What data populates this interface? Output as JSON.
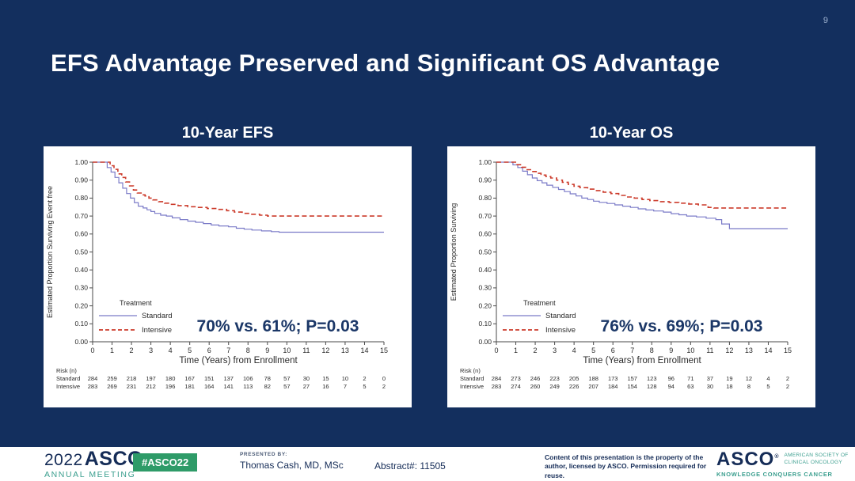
{
  "page_number": "9",
  "title": "EFS Advantage Preserved and Significant OS Advantage",
  "colors": {
    "background": "#132f5e",
    "panel": "#ffffff",
    "title_text": "#ffffff",
    "standard_line": "#7b7bc8",
    "intensive_line": "#cc3b2b",
    "annotation": "#1b3767",
    "badge_green": "#2e9b68",
    "teal": "#3a9e8e",
    "footer_navy": "#152c57"
  },
  "chart_data": [
    {
      "type": "line",
      "subtype": "kaplan-meier-step",
      "title": "10-Year EFS",
      "xlabel": "Time (Years) from Enrollment",
      "ylabel": "Estimated Proportion Surviving Event free",
      "xlim": [
        0,
        15
      ],
      "ylim": [
        0,
        1
      ],
      "xticks": [
        0,
        1,
        2,
        3,
        4,
        5,
        6,
        7,
        8,
        9,
        10,
        11,
        12,
        13,
        14,
        15
      ],
      "ytick_labels": [
        "0.00",
        "0.10",
        "0.20",
        "0.30",
        "0.40",
        "0.50",
        "0.60",
        "0.70",
        "0.80",
        "0.90",
        "1.00"
      ],
      "legend": {
        "title": "Treatment",
        "position": "lower-left-inside"
      },
      "annotation": "70% vs. 61%; P=0.03",
      "series": [
        {
          "name": "Standard",
          "color": "#7b7bc8",
          "dash": "solid",
          "points": [
            [
              0,
              1.0
            ],
            [
              0.55,
              1.0
            ],
            [
              0.75,
              0.97
            ],
            [
              0.95,
              0.945
            ],
            [
              1.15,
              0.915
            ],
            [
              1.35,
              0.885
            ],
            [
              1.55,
              0.855
            ],
            [
              1.75,
              0.825
            ],
            [
              1.95,
              0.8
            ],
            [
              2.15,
              0.775
            ],
            [
              2.35,
              0.755
            ],
            [
              2.6,
              0.745
            ],
            [
              2.8,
              0.735
            ],
            [
              3.0,
              0.725
            ],
            [
              3.2,
              0.715
            ],
            [
              3.5,
              0.705
            ],
            [
              3.8,
              0.7
            ],
            [
              4.1,
              0.69
            ],
            [
              4.5,
              0.68
            ],
            [
              4.9,
              0.672
            ],
            [
              5.3,
              0.665
            ],
            [
              5.7,
              0.658
            ],
            [
              6.1,
              0.65
            ],
            [
              6.5,
              0.645
            ],
            [
              7.0,
              0.64
            ],
            [
              7.4,
              0.632
            ],
            [
              7.8,
              0.627
            ],
            [
              8.2,
              0.622
            ],
            [
              8.7,
              0.617
            ],
            [
              9.2,
              0.613
            ],
            [
              9.6,
              0.61
            ],
            [
              15,
              0.61
            ]
          ]
        },
        {
          "name": "Intensive",
          "color": "#cc3b2b",
          "dash": "dashed",
          "points": [
            [
              0,
              1.0
            ],
            [
              0.7,
              1.0
            ],
            [
              0.9,
              0.98
            ],
            [
              1.1,
              0.96
            ],
            [
              1.3,
              0.935
            ],
            [
              1.5,
              0.915
            ],
            [
              1.7,
              0.89
            ],
            [
              1.9,
              0.868
            ],
            [
              2.1,
              0.845
            ],
            [
              2.3,
              0.828
            ],
            [
              2.5,
              0.818
            ],
            [
              2.7,
              0.812
            ],
            [
              2.9,
              0.8
            ],
            [
              3.1,
              0.79
            ],
            [
              3.4,
              0.78
            ],
            [
              3.7,
              0.772
            ],
            [
              4.0,
              0.765
            ],
            [
              4.4,
              0.758
            ],
            [
              4.9,
              0.752
            ],
            [
              5.4,
              0.748
            ],
            [
              5.9,
              0.742
            ],
            [
              6.4,
              0.737
            ],
            [
              6.9,
              0.73
            ],
            [
              7.3,
              0.722
            ],
            [
              7.7,
              0.715
            ],
            [
              8.1,
              0.71
            ],
            [
              8.6,
              0.705
            ],
            [
              9.0,
              0.7
            ],
            [
              15,
              0.7
            ]
          ]
        }
      ],
      "risk_table": {
        "header": "Risk (n)",
        "rows": [
          {
            "label": "Standard",
            "values": [
              284,
              259,
              218,
              197,
              180,
              167,
              151,
              137,
              106,
              78,
              57,
              30,
              15,
              10,
              2,
              0
            ]
          },
          {
            "label": "Intensive",
            "values": [
              283,
              269,
              231,
              212,
              196,
              181,
              164,
              141,
              113,
              82,
              57,
              27,
              16,
              7,
              5,
              2
            ]
          }
        ]
      }
    },
    {
      "type": "line",
      "subtype": "kaplan-meier-step",
      "title": "10-Year OS",
      "xlabel": "Time (Years) from Enrollment",
      "ylabel": "Estimated Proportion Surviving",
      "xlim": [
        0,
        15
      ],
      "ylim": [
        0,
        1
      ],
      "xticks": [
        0,
        1,
        2,
        3,
        4,
        5,
        6,
        7,
        8,
        9,
        10,
        11,
        12,
        13,
        14,
        15
      ],
      "ytick_labels": [
        "0.00",
        "0.10",
        "0.20",
        "0.30",
        "0.40",
        "0.50",
        "0.60",
        "0.70",
        "0.80",
        "0.90",
        "1.00"
      ],
      "legend": {
        "title": "Treatment",
        "position": "lower-left-inside"
      },
      "annotation": "76% vs. 69%; P=0.03",
      "series": [
        {
          "name": "Standard",
          "color": "#7b7bc8",
          "dash": "solid",
          "points": [
            [
              0,
              1.0
            ],
            [
              0.6,
              1.0
            ],
            [
              0.85,
              0.985
            ],
            [
              1.1,
              0.97
            ],
            [
              1.35,
              0.95
            ],
            [
              1.6,
              0.93
            ],
            [
              1.85,
              0.912
            ],
            [
              2.1,
              0.897
            ],
            [
              2.35,
              0.885
            ],
            [
              2.6,
              0.872
            ],
            [
              2.9,
              0.86
            ],
            [
              3.2,
              0.848
            ],
            [
              3.5,
              0.836
            ],
            [
              3.8,
              0.824
            ],
            [
              4.1,
              0.812
            ],
            [
              4.4,
              0.8
            ],
            [
              4.7,
              0.792
            ],
            [
              5.0,
              0.783
            ],
            [
              5.3,
              0.776
            ],
            [
              5.7,
              0.77
            ],
            [
              6.1,
              0.762
            ],
            [
              6.5,
              0.755
            ],
            [
              6.9,
              0.748
            ],
            [
              7.3,
              0.74
            ],
            [
              7.7,
              0.734
            ],
            [
              8.1,
              0.728
            ],
            [
              8.6,
              0.722
            ],
            [
              9.0,
              0.713
            ],
            [
              9.4,
              0.707
            ],
            [
              9.8,
              0.7
            ],
            [
              10.3,
              0.695
            ],
            [
              10.8,
              0.688
            ],
            [
              11.3,
              0.68
            ],
            [
              11.6,
              0.656
            ],
            [
              12.0,
              0.63
            ],
            [
              15,
              0.63
            ]
          ]
        },
        {
          "name": "Intensive",
          "color": "#cc3b2b",
          "dash": "dashed",
          "points": [
            [
              0,
              1.0
            ],
            [
              0.8,
              1.0
            ],
            [
              1.05,
              0.986
            ],
            [
              1.3,
              0.972
            ],
            [
              1.55,
              0.958
            ],
            [
              1.8,
              0.948
            ],
            [
              2.05,
              0.938
            ],
            [
              2.3,
              0.928
            ],
            [
              2.55,
              0.92
            ],
            [
              2.8,
              0.912
            ],
            [
              3.1,
              0.9
            ],
            [
              3.4,
              0.888
            ],
            [
              3.7,
              0.876
            ],
            [
              4.0,
              0.866
            ],
            [
              4.3,
              0.858
            ],
            [
              4.7,
              0.85
            ],
            [
              5.1,
              0.842
            ],
            [
              5.5,
              0.833
            ],
            [
              5.9,
              0.825
            ],
            [
              6.3,
              0.815
            ],
            [
              6.7,
              0.806
            ],
            [
              7.1,
              0.8
            ],
            [
              7.5,
              0.792
            ],
            [
              7.9,
              0.786
            ],
            [
              8.4,
              0.78
            ],
            [
              8.9,
              0.776
            ],
            [
              9.4,
              0.772
            ],
            [
              9.9,
              0.767
            ],
            [
              10.4,
              0.762
            ],
            [
              10.9,
              0.748
            ],
            [
              11.2,
              0.745
            ],
            [
              15,
              0.745
            ]
          ]
        }
      ],
      "risk_table": {
        "header": "Risk (n)",
        "rows": [
          {
            "label": "Standard",
            "values": [
              284,
              273,
              246,
              223,
              205,
              188,
              173,
              157,
              123,
              96,
              71,
              37,
              19,
              12,
              4,
              2
            ]
          },
          {
            "label": "Intensive",
            "values": [
              283,
              274,
              260,
              249,
              226,
              207,
              184,
              154,
              128,
              94,
              63,
              30,
              18,
              8,
              5,
              2
            ]
          }
        ]
      }
    }
  ],
  "footer": {
    "logo_year": "2022",
    "logo_name": "ASCO",
    "logo_reg": "®",
    "logo_subtitle": "ANNUAL MEETING",
    "hashtag": "#ASCO22",
    "presented_by_label": "PRESENTED BY:",
    "presenter": "Thomas Cash, MD, MSc",
    "abstract": "Abstract#: 11505",
    "disclaimer": "Content of this presentation is the property of the author, licensed by ASCO. Permission required for reuse.",
    "society_name": "ASCO",
    "society_reg": "®",
    "society_line1": "AMERICAN SOCIETY OF",
    "society_line2": "CLINICAL ONCOLOGY",
    "tagline": "KNOWLEDGE CONQUERS CANCER"
  }
}
